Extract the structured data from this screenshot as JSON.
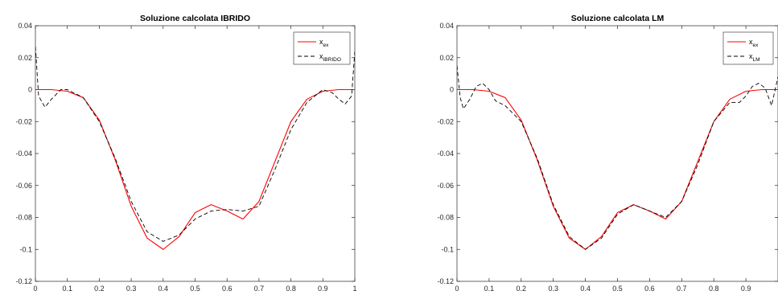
{
  "chart_data": [
    {
      "type": "line",
      "title": "Soluzione calcolata IBRIDO",
      "xlim": [
        0,
        1
      ],
      "ylim": [
        -0.12,
        0.04
      ],
      "xticks": [
        0,
        0.1,
        0.2,
        0.3,
        0.4,
        0.5,
        0.6,
        0.7,
        0.8,
        0.9,
        1
      ],
      "xtick_labels": [
        "0",
        "0.1",
        "0.2",
        "0.3",
        "0.4",
        "0.5",
        "0.6",
        "0.7",
        "0.8",
        "0.9",
        "1"
      ],
      "yticks": [
        0.04,
        0.02,
        0,
        -0.02,
        -0.04,
        -0.06,
        -0.08,
        -0.1,
        -0.12
      ],
      "ytick_labels": [
        "0.04",
        "0.02",
        "0",
        "-0.02",
        "-0.04",
        "-0.06",
        "-0.08",
        "-0.1",
        "-0.12"
      ],
      "grid": false,
      "legend_position": "top-right",
      "series": [
        {
          "name_main": "x",
          "name_sub": "ex",
          "color": "#ff0000",
          "dash": "solid",
          "x": [
            0,
            0.05,
            0.1,
            0.15,
            0.2,
            0.25,
            0.3,
            0.35,
            0.4,
            0.45,
            0.5,
            0.55,
            0.6,
            0.65,
            0.7,
            0.75,
            0.8,
            0.85,
            0.9,
            0.95,
            1
          ],
          "y": [
            0,
            0,
            -0.001,
            -0.005,
            -0.019,
            -0.044,
            -0.073,
            -0.093,
            -0.1,
            -0.092,
            -0.077,
            -0.072,
            -0.076,
            -0.081,
            -0.07,
            -0.045,
            -0.02,
            -0.006,
            -0.001,
            0,
            0
          ]
        },
        {
          "name_main": "x",
          "name_sub": "IBRIDO",
          "color": "#000000",
          "dash": "dashed",
          "x": [
            0,
            0.01,
            0.03,
            0.05,
            0.08,
            0.1,
            0.15,
            0.2,
            0.25,
            0.3,
            0.35,
            0.4,
            0.45,
            0.5,
            0.55,
            0.6,
            0.65,
            0.7,
            0.75,
            0.8,
            0.85,
            0.9,
            0.93,
            0.95,
            0.97,
            0.99,
            1
          ],
          "y": [
            0.027,
            -0.004,
            -0.011,
            -0.006,
            0,
            0,
            -0.005,
            -0.02,
            -0.043,
            -0.07,
            -0.089,
            -0.095,
            -0.091,
            -0.081,
            -0.076,
            -0.075,
            -0.076,
            -0.073,
            -0.05,
            -0.025,
            -0.008,
            0,
            -0.002,
            -0.006,
            -0.009,
            -0.004,
            0.024
          ]
        }
      ]
    },
    {
      "type": "line",
      "title": "Soluzione calcolata LM",
      "xlim": [
        0,
        1
      ],
      "ylim": [
        -0.12,
        0.04
      ],
      "xticks": [
        0,
        0.1,
        0.2,
        0.3,
        0.4,
        0.5,
        0.6,
        0.7,
        0.8,
        0.9
      ],
      "xtick_labels": [
        "0",
        "0.1",
        "0.2",
        "0.3",
        "0.4",
        "0.5",
        "0.6",
        "0.7",
        "0.8",
        "0.9"
      ],
      "yticks": [
        0.04,
        0.02,
        0,
        -0.02,
        -0.04,
        -0.06,
        -0.08,
        -0.1,
        -0.12
      ],
      "ytick_labels": [
        "0.04",
        "0.02",
        "0",
        "-0.02",
        "-0.04",
        "-0.06",
        "-0.08",
        "-0.1",
        "-0.12"
      ],
      "grid": false,
      "legend_position": "top-right",
      "series": [
        {
          "name_main": "x",
          "name_sub": "ex",
          "color": "#ff0000",
          "dash": "solid",
          "x": [
            0,
            0.05,
            0.1,
            0.15,
            0.2,
            0.25,
            0.3,
            0.35,
            0.4,
            0.45,
            0.5,
            0.55,
            0.6,
            0.65,
            0.7,
            0.75,
            0.8,
            0.85,
            0.9,
            0.95,
            1
          ],
          "y": [
            0,
            0,
            -0.001,
            -0.005,
            -0.019,
            -0.044,
            -0.073,
            -0.093,
            -0.1,
            -0.092,
            -0.077,
            -0.072,
            -0.076,
            -0.081,
            -0.07,
            -0.045,
            -0.02,
            -0.006,
            -0.001,
            0,
            0
          ]
        },
        {
          "name_main": "x",
          "name_sub": "LM",
          "color": "#000000",
          "dash": "dashed",
          "x": [
            0,
            0.01,
            0.02,
            0.04,
            0.06,
            0.08,
            0.1,
            0.12,
            0.15,
            0.2,
            0.25,
            0.3,
            0.35,
            0.4,
            0.45,
            0.5,
            0.55,
            0.6,
            0.65,
            0.7,
            0.75,
            0.8,
            0.85,
            0.88,
            0.9,
            0.92,
            0.94,
            0.96,
            0.98,
            1
          ],
          "y": [
            0.015,
            -0.005,
            -0.012,
            -0.006,
            0.002,
            0.004,
            0,
            -0.007,
            -0.01,
            -0.02,
            -0.043,
            -0.072,
            -0.092,
            -0.1,
            -0.093,
            -0.078,
            -0.072,
            -0.076,
            -0.08,
            -0.07,
            -0.047,
            -0.02,
            -0.008,
            -0.008,
            -0.004,
            0.002,
            0.004,
            0.001,
            -0.01,
            0.008
          ]
        }
      ]
    }
  ]
}
